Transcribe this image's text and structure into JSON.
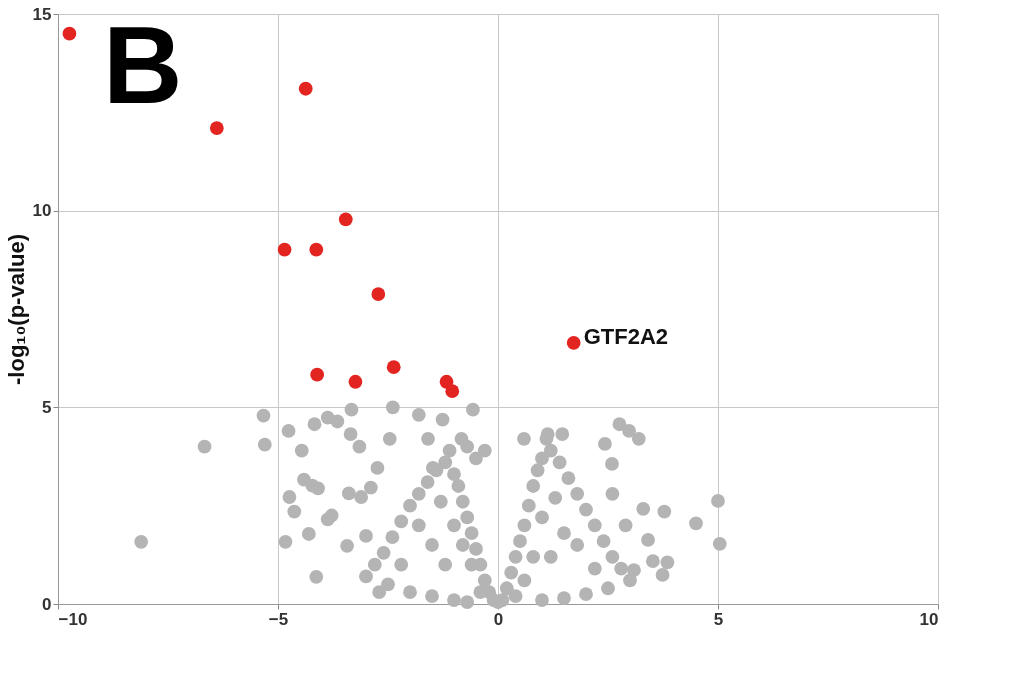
{
  "chart_data": {
    "type": "scatter",
    "ylabel": "-log₁₀(p-value)",
    "xlim": [
      -10,
      10
    ],
    "ylim": [
      0,
      15
    ],
    "xticks": [
      -10,
      -5,
      0,
      5,
      10
    ],
    "yticks": [
      0,
      5,
      10,
      15
    ],
    "grid": true,
    "marker": "circle",
    "annotations": [
      "B",
      {
        "text": "GTF2A2",
        "x": 1.72,
        "y": 6.64
      }
    ],
    "series": [
      {
        "color": "#b4b4b4",
        "x": [
          -5.33,
          -5.3,
          -6.67,
          -8.11,
          -4.76,
          -4.46,
          -4.17,
          -3.87,
          -3.65,
          -3.33,
          -3.35,
          -3.15,
          -4.74,
          -4.63,
          -4.41,
          -4.22,
          -4.09,
          -4.83,
          -4.3,
          -4.13,
          -3.87,
          -3.78,
          -3.43,
          -3.39,
          -3.11,
          -2.89,
          -3.0,
          -2.74,
          -2.46,
          -2.39,
          -1.8,
          -1.59,
          -1.48,
          -1.26,
          -0.83,
          -0.57,
          0.59,
          1.13,
          1.46,
          2.43,
          2.76,
          2.98,
          3.2,
          2.59,
          3.3,
          3.78,
          4.5,
          5.0,
          5.04,
          3.41,
          3.52,
          3.85,
          3.74,
          3.09,
          -0.1,
          -0.2,
          -0.3,
          -0.4,
          -0.5,
          -0.6,
          -0.7,
          -0.8,
          -0.9,
          -1.0,
          -1.2,
          -1.4,
          -1.6,
          -1.8,
          -2.0,
          -2.2,
          -2.4,
          -2.6,
          -2.8,
          -3.0,
          -2.5,
          -2.0,
          -1.5,
          -1.0,
          -0.7,
          -1.2,
          -1.5,
          -1.8,
          -1.0,
          -0.6,
          -2.2,
          -1.3,
          -0.8,
          -0.4,
          -2.7,
          -0.5,
          -0.3,
          -0.7,
          -1.1,
          0.1,
          0.2,
          0.3,
          0.4,
          0.5,
          0.6,
          0.7,
          0.8,
          0.9,
          1.0,
          1.2,
          1.4,
          1.6,
          1.8,
          2.0,
          2.2,
          2.4,
          2.6,
          2.8,
          3.0,
          2.5,
          2.0,
          1.5,
          1.0,
          1.2,
          1.5,
          1.8,
          1.0,
          0.6,
          2.2,
          1.3,
          0.8,
          0.4,
          1.1,
          2.6,
          2.9,
          0.0
        ],
        "values": [
          4.79,
          4.05,
          4.0,
          1.58,
          4.4,
          3.9,
          4.57,
          4.74,
          4.64,
          4.94,
          4.32,
          4.0,
          2.72,
          2.35,
          3.16,
          3.01,
          2.94,
          1.58,
          1.78,
          0.69,
          2.15,
          2.25,
          1.48,
          2.81,
          2.72,
          2.96,
          1.73,
          3.46,
          4.2,
          5.0,
          4.81,
          4.2,
          3.46,
          4.69,
          4.2,
          4.94,
          4.2,
          4.32,
          4.32,
          4.07,
          4.57,
          4.4,
          4.2,
          3.56,
          2.42,
          2.35,
          2.05,
          2.62,
          1.53,
          1.63,
          1.09,
          1.06,
          0.74,
          0.86,
          0.1,
          0.3,
          0.6,
          1.0,
          1.4,
          1.8,
          2.2,
          2.6,
          3.0,
          3.3,
          3.6,
          3.4,
          3.1,
          2.8,
          2.5,
          2.1,
          1.7,
          1.3,
          1.0,
          0.7,
          0.5,
          0.3,
          0.2,
          0.1,
          0.05,
          1.0,
          1.5,
          2.0,
          2.0,
          1.0,
          1.0,
          2.6,
          1.5,
          0.3,
          0.3,
          3.7,
          3.9,
          4.0,
          3.9,
          0.1,
          0.4,
          0.8,
          1.2,
          1.6,
          2.0,
          2.5,
          3.0,
          3.4,
          3.7,
          3.9,
          3.6,
          3.2,
          2.8,
          2.4,
          2.0,
          1.6,
          1.2,
          0.9,
          0.6,
          0.4,
          0.25,
          0.15,
          0.1,
          1.2,
          1.8,
          1.5,
          2.2,
          0.6,
          0.9,
          2.7,
          1.2,
          0.2,
          4.2,
          2.8,
          2.0,
          0.05
        ]
      },
      {
        "color": "#e32521",
        "x": [
          -9.74,
          -4.37,
          -6.39,
          -3.46,
          -4.85,
          -4.13,
          -2.72,
          1.72,
          -4.11,
          -3.24,
          -2.37,
          -1.17,
          -1.04
        ],
        "values": [
          14.5,
          13.1,
          12.1,
          9.78,
          9.01,
          9.01,
          7.88,
          6.64,
          5.83,
          5.65,
          6.02,
          5.65,
          5.41
        ]
      }
    ]
  }
}
